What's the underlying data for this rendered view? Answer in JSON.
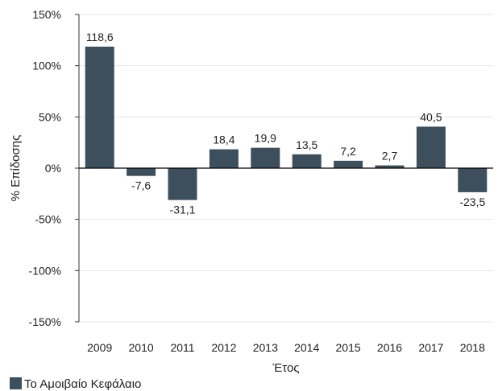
{
  "chart_data": {
    "type": "bar",
    "categories": [
      "2009",
      "2010",
      "2011",
      "2012",
      "2013",
      "2014",
      "2015",
      "2016",
      "2017",
      "2018"
    ],
    "series": [
      {
        "name": "Το Αμοιβαίο Κεφάλαιο",
        "values": [
          118.6,
          -7.6,
          -31.1,
          18.4,
          19.9,
          13.5,
          7.2,
          2.7,
          40.5,
          -23.5
        ],
        "data_labels": [
          "118,6",
          "-7,6",
          "-31,1",
          "18,4",
          "19,9",
          "13,5",
          "7,2",
          "2,7",
          "40,5",
          "-23,5"
        ],
        "color": "#3d4f5c"
      }
    ],
    "xlabel": "Έτος",
    "ylabel": "% Επίδοσης",
    "ylim": [
      -150,
      150
    ],
    "yticks": [
      150,
      100,
      50,
      0,
      -50,
      -100,
      -150
    ],
    "ytick_labels": [
      "150%",
      "100%",
      "50%",
      "0%",
      "-50%",
      "-100%",
      "-150%"
    ],
    "grid": true,
    "legend": "bottom-left"
  }
}
